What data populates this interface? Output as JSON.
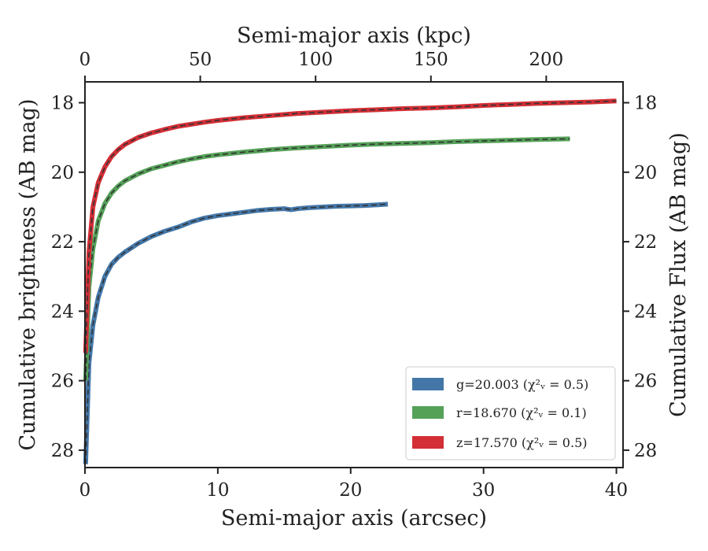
{
  "chart_data": {
    "type": "line",
    "xlabel": "Semi-major axis (arcsec)",
    "x2label": "Semi-major axis (kpc)",
    "ylabel": "Cumulative brightness (AB mag)",
    "y2label": "Cumulative Flux (AB mag)",
    "xlim": [
      0,
      40.5
    ],
    "x2lim": [
      0,
      233.3
    ],
    "ylim": [
      28.5,
      17.4
    ],
    "y_inverted": true,
    "xticks": [
      "0",
      "10",
      "20",
      "30",
      "40"
    ],
    "x2ticks": [
      "0",
      "50",
      "100",
      "150",
      "200"
    ],
    "yticks": [
      "18",
      "20",
      "22",
      "24",
      "26",
      "28"
    ],
    "y2ticks": [
      "18",
      "20",
      "22",
      "24",
      "26",
      "28"
    ],
    "grid": false,
    "legend_position": "lower-right",
    "series": [
      {
        "name": "g",
        "legend_label": "g=20.003 (χ²ᵥ = 0.5)",
        "color": "#4477a8",
        "x": [
          0.05,
          0.3,
          0.6,
          1,
          1.5,
          2,
          2.5,
          3,
          4,
          5,
          6,
          7,
          8,
          9,
          10,
          11,
          12,
          13,
          14,
          15,
          15.5,
          16,
          17,
          18,
          19,
          20,
          21,
          22,
          22.8
        ],
        "y": [
          28.4,
          25.5,
          24.4,
          23.6,
          23.0,
          22.65,
          22.45,
          22.3,
          22.05,
          21.85,
          21.7,
          21.58,
          21.43,
          21.32,
          21.25,
          21.2,
          21.15,
          21.1,
          21.07,
          21.05,
          21.08,
          21.05,
          21.02,
          21.0,
          20.98,
          20.97,
          20.96,
          20.94,
          20.92
        ]
      },
      {
        "name": "r",
        "legend_label": "r=18.670 (χ²ᵥ = 0.1)",
        "color": "#55a158",
        "x": [
          0.05,
          0.3,
          0.6,
          1,
          1.5,
          2,
          2.5,
          3,
          4,
          5,
          6,
          7,
          8,
          9,
          10,
          12,
          14,
          16,
          18,
          20,
          22,
          24,
          26,
          28,
          30,
          32,
          34,
          36.5
        ],
        "y": [
          26.0,
          23.3,
          22.2,
          21.4,
          20.9,
          20.6,
          20.4,
          20.25,
          20.05,
          19.9,
          19.8,
          19.7,
          19.62,
          19.55,
          19.5,
          19.42,
          19.35,
          19.3,
          19.26,
          19.22,
          19.19,
          19.17,
          19.15,
          19.12,
          19.1,
          19.08,
          19.06,
          19.04
        ]
      },
      {
        "name": "z",
        "legend_label": "z=17.570 (χ²ᵥ = 0.5)",
        "color": "#d32f36",
        "x": [
          0.05,
          0.3,
          0.6,
          1,
          1.5,
          2,
          2.5,
          3,
          4,
          5,
          6,
          7,
          8,
          9,
          10,
          12,
          14,
          16,
          18,
          20,
          22,
          24,
          26,
          28,
          30,
          32,
          34,
          36,
          38,
          40
        ],
        "y": [
          25.2,
          22.3,
          21.0,
          20.3,
          19.85,
          19.55,
          19.35,
          19.2,
          19.0,
          18.87,
          18.77,
          18.68,
          18.62,
          18.56,
          18.51,
          18.43,
          18.37,
          18.31,
          18.27,
          18.23,
          18.2,
          18.17,
          18.15,
          18.12,
          18.08,
          18.05,
          18.02,
          18.0,
          17.98,
          17.95
        ]
      }
    ]
  }
}
